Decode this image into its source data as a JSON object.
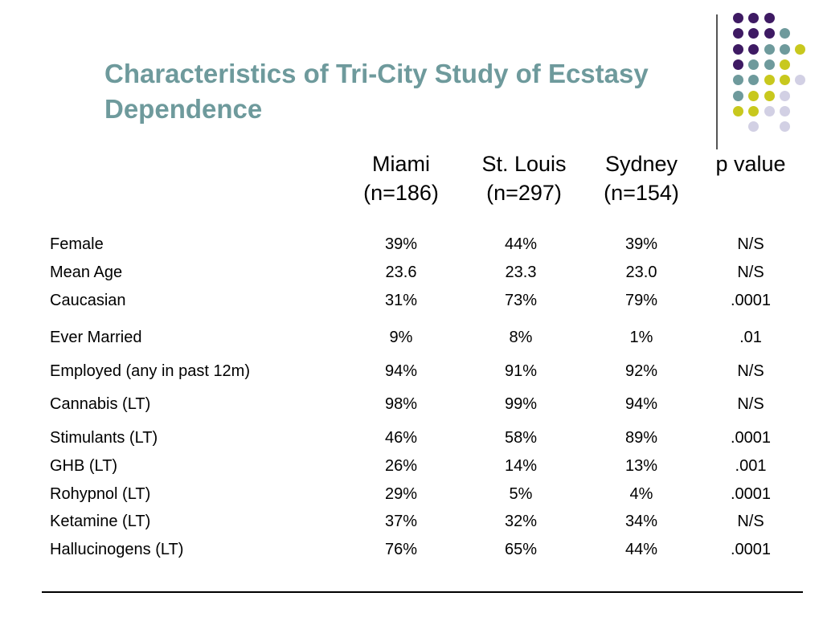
{
  "slide": {
    "title": "Characteristics of Tri-City Study of Ecstasy\nDependence"
  },
  "colors": {
    "title": "#6e9a9c",
    "dot_purple": "#3e1a63",
    "dot_teal": "#6e9a9c",
    "dot_yellow": "#c8c81e",
    "dot_lavender": "#d2d0e4"
  },
  "decoration": {
    "dot_rows": [
      [
        "purple",
        "purple",
        "purple",
        null,
        null
      ],
      [
        "purple",
        "purple",
        "purple",
        "teal",
        null
      ],
      [
        "purple",
        "purple",
        "teal",
        "teal",
        "yellow"
      ],
      [
        "purple",
        "teal",
        "teal",
        "yellow",
        null
      ],
      [
        "teal",
        "teal",
        "yellow",
        "yellow",
        "lavender"
      ],
      [
        "teal",
        "yellow",
        "yellow",
        "lavender",
        null
      ],
      [
        "yellow",
        "yellow",
        "lavender",
        "lavender",
        null
      ],
      [
        null,
        "lavender",
        null,
        "lavender",
        null
      ]
    ]
  },
  "table": {
    "columns": [
      {
        "name": "Miami",
        "n": "(n=186)"
      },
      {
        "name": "St. Louis",
        "n": "(n=297)"
      },
      {
        "name": "Sydney",
        "n": "(n=154)"
      },
      {
        "name": "p value",
        "n": ""
      }
    ],
    "rows": [
      {
        "label": "Female",
        "values": [
          "39%",
          "44%",
          "39%",
          "N/S"
        ]
      },
      {
        "label": "Mean Age",
        "values": [
          "23.6",
          "23.3",
          "23.0",
          "N/S"
        ]
      },
      {
        "label": "Caucasian",
        "values": [
          "31%",
          "73%",
          "79%",
          ".0001"
        ]
      },
      {
        "label": "Ever Married",
        "values": [
          "9%",
          "8%",
          "1%",
          ".01"
        ]
      },
      {
        "label": "Employed (any in past 12m)",
        "values": [
          "94%",
          "91%",
          "92%",
          "N/S"
        ]
      },
      {
        "label": "Cannabis (LT)",
        "values": [
          "98%",
          "99%",
          "94%",
          "N/S"
        ]
      },
      {
        "label": "Stimulants (LT)",
        "values": [
          "46%",
          "58%",
          "89%",
          ".0001"
        ]
      },
      {
        "label": "GHB (LT)",
        "values": [
          "26%",
          "14%",
          "13%",
          ".001"
        ]
      },
      {
        "label": "Rohypnol (LT)",
        "values": [
          "29%",
          "5%",
          "4%",
          ".0001"
        ]
      },
      {
        "label": "Ketamine (LT)",
        "values": [
          "37%",
          "32%",
          "34%",
          "N/S"
        ]
      },
      {
        "label": "Hallucinogens (LT)",
        "values": [
          "76%",
          "65%",
          "44%",
          ".0001"
        ]
      }
    ]
  }
}
